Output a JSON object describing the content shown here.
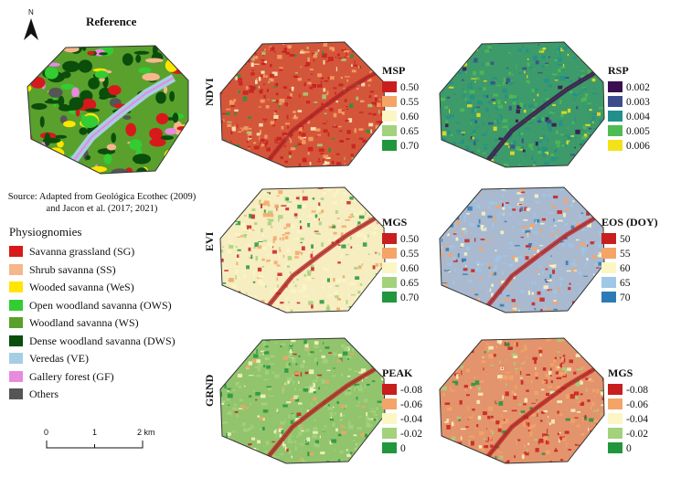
{
  "reference": {
    "title": "Reference",
    "north_label": "N",
    "source_text": "Source: Adapted from Geológica Ecothec (2009) and Jacon et al. (2017; 2021)"
  },
  "physiognomies": {
    "title": "Physiognomies",
    "items": [
      {
        "label": "Savanna grassland (SG)",
        "color": "#d7191c"
      },
      {
        "label": "Shrub savanna (SS)",
        "color": "#f5b78b"
      },
      {
        "label": "Wooded savanna (WeS)",
        "color": "#ffe600"
      },
      {
        "label": "Open woodland savanna (OWS)",
        "color": "#33cc33"
      },
      {
        "label": "Woodland savanna (WS)",
        "color": "#5aa02c"
      },
      {
        "label": "Dense woodland savanna (DWS)",
        "color": "#0b4d0b"
      },
      {
        "label": "Veredas (VE)",
        "color": "#a6cee3"
      },
      {
        "label": "Gallery forest (GF)",
        "color": "#e78ae0"
      },
      {
        "label": "Others",
        "color": "#555555"
      }
    ]
  },
  "scale_bar": {
    "labels": [
      "0",
      "1",
      "2 km"
    ]
  },
  "rows": [
    {
      "label": "NDVI"
    },
    {
      "label": "EVI"
    },
    {
      "label": "GRND"
    }
  ],
  "maps": [
    {
      "id": "ndvi-msp",
      "legend_title": "MSP",
      "colors": [
        "#c81e1e",
        "#f4a467",
        "#fbf6c4",
        "#a3d17c",
        "#22963c"
      ],
      "labels": [
        "0.50",
        "0.55",
        "0.60",
        "0.65",
        "0.70"
      ]
    },
    {
      "id": "ndvi-rsp",
      "legend_title": "RSP",
      "colors": [
        "#3b0f4f",
        "#3b4c8c",
        "#21908d",
        "#4fbb53",
        "#f3e21a"
      ],
      "labels": [
        "0.002",
        "0.003",
        "0.004",
        "0.005",
        "0.006"
      ]
    },
    {
      "id": "evi-mgs",
      "legend_title": "MGS",
      "colors": [
        "#c81e1e",
        "#f4a467",
        "#fbf6c4",
        "#a3d17c",
        "#22963c"
      ],
      "labels": [
        "0.50",
        "0.55",
        "0.60",
        "0.65",
        "0.70"
      ]
    },
    {
      "id": "evi-eos",
      "legend_title": "EOS (DOY)",
      "colors": [
        "#c81e1e",
        "#f4a467",
        "#fbf6c4",
        "#9fc7e6",
        "#2c7bb6"
      ],
      "labels": [
        "50",
        "55",
        "60",
        "65",
        "70"
      ]
    },
    {
      "id": "grnd-peak",
      "legend_title": "PEAK",
      "colors": [
        "#c81e1e",
        "#f4a467",
        "#fbf6c4",
        "#a3d17c",
        "#22963c"
      ],
      "labels": [
        "-0.08",
        "-0.06",
        "-0.04",
        "-0.02",
        "0"
      ]
    },
    {
      "id": "grnd-mgs",
      "legend_title": "MGS",
      "colors": [
        "#c81e1e",
        "#f4a467",
        "#fbf6c4",
        "#a3d17c",
        "#22963c"
      ],
      "labels": [
        "-0.08",
        "-0.06",
        "-0.04",
        "-0.02",
        "0"
      ]
    }
  ],
  "map_textures": [
    {
      "base": "#d4563a",
      "weights": [
        0.45,
        0.3,
        0.12,
        0.09,
        0.04
      ]
    },
    {
      "base": "#3d9a6a",
      "weights": [
        0.04,
        0.1,
        0.38,
        0.3,
        0.18
      ]
    },
    {
      "base": "#f6edc0",
      "weights": [
        0.1,
        0.18,
        0.45,
        0.2,
        0.07
      ]
    },
    {
      "base": "#a9b9d0",
      "weights": [
        0.1,
        0.22,
        0.2,
        0.38,
        0.1
      ]
    },
    {
      "base": "#91c46c",
      "weights": [
        0.03,
        0.07,
        0.2,
        0.5,
        0.2
      ]
    },
    {
      "base": "#e3946c",
      "weights": [
        0.3,
        0.35,
        0.17,
        0.12,
        0.06
      ]
    }
  ]
}
